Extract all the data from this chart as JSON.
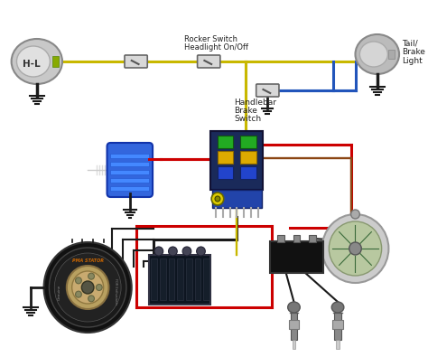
{
  "bg_color": "#ffffff",
  "fig_width": 4.74,
  "fig_height": 3.95,
  "dpi": 100,
  "wire_colors": {
    "yellow": "#c8b800",
    "red": "#cc0000",
    "black": "#1a1a1a",
    "blue": "#2255bb",
    "brown": "#8B4513",
    "dark_red": "#aa0000"
  },
  "labels": {
    "rocker_switch": [
      "Rocker Switch",
      "Headlight On/Off"
    ],
    "tail_brake": [
      "Tail/",
      "Brake",
      "Light"
    ],
    "handlebar_brake": [
      "Handlebar",
      "Brake",
      "Switch"
    ],
    "hl": "H-L"
  }
}
